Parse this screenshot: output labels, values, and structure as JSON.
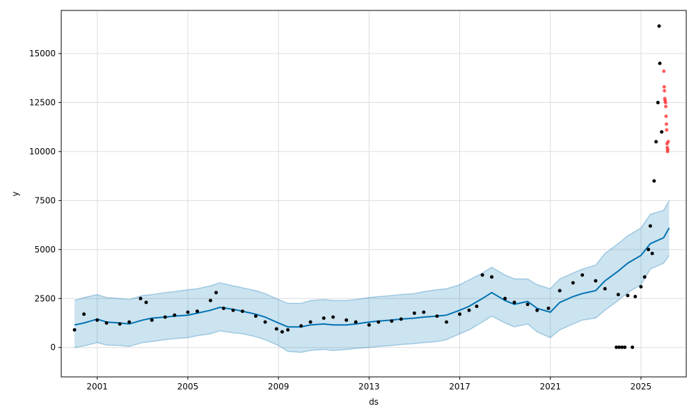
{
  "chart_data": {
    "type": "line",
    "title": "",
    "xlabel": "ds",
    "ylabel": "y",
    "xlim": [
      "1999-06-01",
      "2027-01-01"
    ],
    "ylim": [
      -1500,
      17200
    ],
    "grid": true,
    "legend": "none",
    "x_ticks": [
      {
        "date": "2001-01-01",
        "label": "2001"
      },
      {
        "date": "2005-01-01",
        "label": "2005"
      },
      {
        "date": "2009-01-01",
        "label": "2009"
      },
      {
        "date": "2013-01-01",
        "label": "2013"
      },
      {
        "date": "2017-01-01",
        "label": "2017"
      },
      {
        "date": "2021-01-01",
        "label": "2021"
      },
      {
        "date": "2025-01-01",
        "label": "2025"
      }
    ],
    "y_ticks": [
      {
        "value": 0,
        "label": "0"
      },
      {
        "value": 2500,
        "label": "2500"
      },
      {
        "value": 5000,
        "label": "5000"
      },
      {
        "value": 7500,
        "label": "7500"
      },
      {
        "value": 10000,
        "label": "10000"
      },
      {
        "value": 12500,
        "label": "12500"
      },
      {
        "value": 15000,
        "label": "15000"
      }
    ],
    "colors": {
      "observed": "#000000",
      "forecast_line": "#0072B2",
      "uncertainty_band": "#0072B2",
      "test_points": "#ff3333",
      "grid": "#dddddd"
    },
    "series": [
      {
        "role": "forecast",
        "x": [
          "2000-01-01",
          "2000-06-01",
          "2001-01-01",
          "2001-06-01",
          "2002-01-01",
          "2002-06-01",
          "2003-01-01",
          "2003-06-01",
          "2004-01-01",
          "2004-06-01",
          "2005-01-01",
          "2005-06-01",
          "2006-01-01",
          "2006-06-01",
          "2007-01-01",
          "2007-06-01",
          "2008-01-01",
          "2008-06-01",
          "2009-01-01",
          "2009-06-01",
          "2010-01-01",
          "2010-06-01",
          "2011-01-01",
          "2011-06-01",
          "2012-01-01",
          "2012-06-01",
          "2013-01-01",
          "2013-06-01",
          "2014-01-01",
          "2014-06-01",
          "2015-01-01",
          "2015-06-01",
          "2016-01-01",
          "2016-06-01",
          "2017-01-01",
          "2017-06-01",
          "2018-01-01",
          "2018-06-01",
          "2019-01-01",
          "2019-06-01",
          "2020-01-01",
          "2020-06-01",
          "2021-01-01",
          "2021-06-01",
          "2022-01-01",
          "2022-06-01",
          "2023-01-01",
          "2023-06-01",
          "2024-01-01",
          "2024-06-01",
          "2025-01-01",
          "2025-06-01",
          "2026-01-01",
          "2026-04-01"
        ],
        "yhat": [
          1150,
          1250,
          1450,
          1300,
          1250,
          1200,
          1400,
          1500,
          1550,
          1600,
          1650,
          1750,
          1900,
          2050,
          1950,
          1850,
          1700,
          1550,
          1250,
          1050,
          1050,
          1150,
          1200,
          1150,
          1150,
          1200,
          1300,
          1350,
          1400,
          1450,
          1500,
          1550,
          1600,
          1650,
          1900,
          2100,
          2500,
          2800,
          2400,
          2200,
          2350,
          2000,
          1800,
          2300,
          2600,
          2750,
          2900,
          3400,
          3900,
          4300,
          4700,
          5300,
          5600,
          6100
        ],
        "lower": [
          0,
          80,
          250,
          120,
          100,
          50,
          250,
          300,
          400,
          450,
          500,
          600,
          700,
          850,
          750,
          700,
          550,
          400,
          100,
          -200,
          -250,
          -150,
          -100,
          -150,
          -100,
          -50,
          0,
          50,
          100,
          150,
          200,
          250,
          300,
          400,
          700,
          900,
          1300,
          1600,
          1250,
          1050,
          1200,
          800,
          500,
          900,
          1200,
          1400,
          1500,
          1900,
          2400,
          2800,
          3200,
          4000,
          4300,
          4700
        ],
        "upper": [
          2400,
          2550,
          2700,
          2550,
          2500,
          2450,
          2650,
          2700,
          2800,
          2850,
          2950,
          3000,
          3150,
          3300,
          3150,
          3050,
          2900,
          2750,
          2450,
          2250,
          2250,
          2400,
          2450,
          2400,
          2400,
          2450,
          2550,
          2600,
          2650,
          2700,
          2750,
          2850,
          2950,
          3000,
          3200,
          3450,
          3800,
          4100,
          3700,
          3500,
          3500,
          3200,
          3000,
          3500,
          3800,
          4000,
          4200,
          4800,
          5300,
          5700,
          6100,
          6800,
          7000,
          7500
        ]
      },
      {
        "role": "observed",
        "x": [
          "2000-01-01",
          "2000-06-01",
          "2001-01-01",
          "2001-06-01",
          "2002-01-01",
          "2002-06-01",
          "2002-12-01",
          "2003-03-01",
          "2003-06-01",
          "2004-01-01",
          "2004-06-01",
          "2005-01-01",
          "2005-06-01",
          "2006-01-01",
          "2006-04-01",
          "2006-08-01",
          "2007-01-01",
          "2007-06-01",
          "2008-01-01",
          "2008-06-01",
          "2008-12-01",
          "2009-03-01",
          "2009-06-01",
          "2010-01-01",
          "2010-06-01",
          "2011-01-01",
          "2011-06-01",
          "2012-01-01",
          "2012-06-01",
          "2013-01-01",
          "2013-06-01",
          "2014-01-01",
          "2014-06-01",
          "2015-01-01",
          "2015-06-01",
          "2016-01-01",
          "2016-06-01",
          "2017-01-01",
          "2017-06-01",
          "2017-10-01",
          "2018-01-01",
          "2018-06-01",
          "2019-01-01",
          "2019-06-01",
          "2020-01-01",
          "2020-06-01",
          "2020-12-01",
          "2021-06-01",
          "2022-01-01",
          "2022-06-01",
          "2023-01-01",
          "2023-06-01",
          "2024-01-01",
          "2024-06-01",
          "2024-10-01",
          "2025-01-01",
          "2025-03-01",
          "2025-05-01",
          "2025-06-01",
          "2025-07-01",
          "2025-08-01",
          "2025-09-01",
          "2025-10-01",
          "2025-11-01",
          "2025-12-01"
        ],
        "y": [
          900,
          1700,
          1400,
          1250,
          1200,
          1300,
          2500,
          2300,
          1400,
          1550,
          1650,
          1800,
          1850,
          2400,
          2800,
          2000,
          1900,
          1850,
          1600,
          1300,
          950,
          800,
          900,
          1100,
          1300,
          1500,
          1550,
          1400,
          1300,
          1150,
          1300,
          1350,
          1450,
          1750,
          1800,
          1600,
          1300,
          1700,
          1900,
          2100,
          3700,
          3600,
          2500,
          2300,
          2200,
          1900,
          2000,
          2900,
          3300,
          3700,
          3400,
          3000,
          2700,
          2650,
          2600,
          3100,
          3600,
          5000,
          6200,
          4800,
          8500,
          10500,
          12500,
          14500,
          11000
        ]
      },
      {
        "role": "observed-outliers",
        "x": [
          "2023-12-01",
          "2024-01-15",
          "2024-03-01",
          "2024-04-15",
          "2024-08-15"
        ],
        "y": [
          10,
          10,
          10,
          10,
          10
        ]
      },
      {
        "role": "observed-peak",
        "x": [
          "2025-10-20"
        ],
        "y": [
          16400
        ]
      },
      {
        "role": "test",
        "x": [
          "2026-01-05",
          "2026-01-10",
          "2026-01-15",
          "2026-01-20",
          "2026-01-25",
          "2026-02-01",
          "2026-02-05",
          "2026-02-10",
          "2026-02-15",
          "2026-02-20",
          "2026-02-25",
          "2026-03-01",
          "2026-03-05",
          "2026-03-10",
          "2026-03-15"
        ],
        "y": [
          14100,
          13300,
          13100,
          12700,
          12600,
          12500,
          12300,
          11800,
          11400,
          11100,
          10400,
          10200,
          10000,
          10100,
          10500
        ]
      }
    ]
  }
}
